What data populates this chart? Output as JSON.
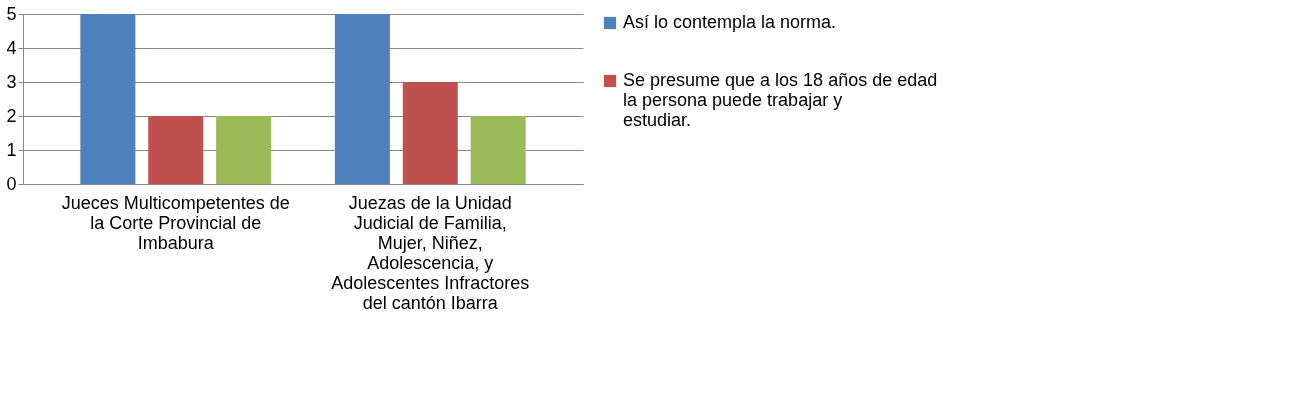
{
  "chart_data": {
    "type": "bar",
    "categories": [
      "Jueces Multicompetentes de la Corte Provincial de Imbabura",
      "Juezas de la Unidad Judicial de Familia, Mujer, Niñez, Adolescencia, y Adolescentes Infractores del cantón Ibarra"
    ],
    "series": [
      {
        "name": "Así lo contempla la norma.",
        "color": "#4f81bd",
        "values": [
          5,
          5
        ]
      },
      {
        "name": "Se presume que a los 18 años de edad la persona puede trabajar y estudiar.",
        "color": "#c0504d",
        "values": [
          2,
          3
        ]
      },
      {
        "color": "#9bbb59",
        "values": [
          2,
          2
        ]
      }
    ],
    "ylim": [
      0,
      5
    ],
    "yticks": [
      0,
      1,
      2,
      3,
      4,
      5
    ],
    "grid": "y",
    "legend": "right"
  }
}
